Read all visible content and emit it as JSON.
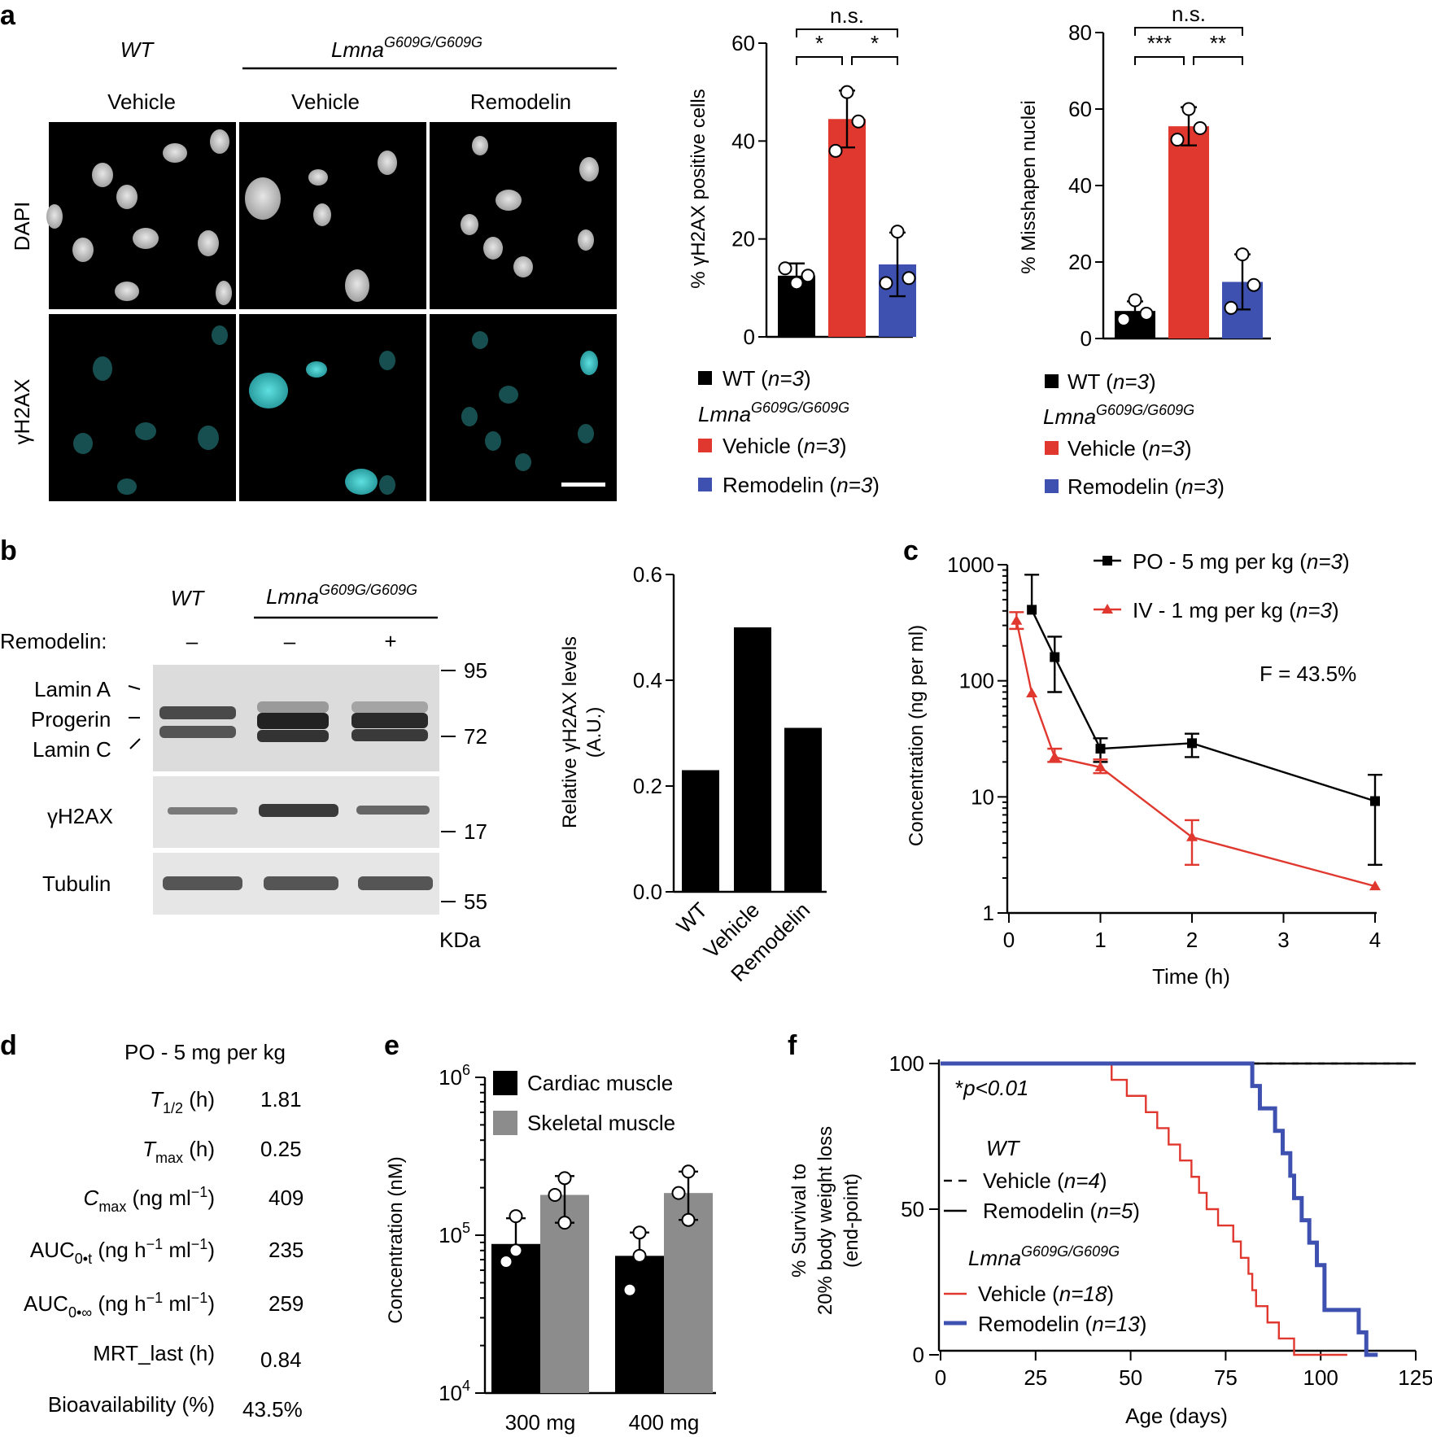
{
  "colors": {
    "black": "#000000",
    "red": "#e0382e",
    "blue": "#3f51b0",
    "grey": "#8c8c8c",
    "cyan": "#40c8c8",
    "nucleus": "#c8c8c8"
  },
  "panel_labels": {
    "a": "a",
    "b": "b",
    "c": "c",
    "d": "d",
    "e": "e",
    "f": "f"
  },
  "micro": {
    "col_wt": "WT",
    "col_lmna": "Lmna",
    "col_lmna_sup": "G609G/G609G",
    "col_vehicle1": "Vehicle",
    "col_vehicle2": "Vehicle",
    "col_remodelin": "Remodelin",
    "row_dapi": "DAPI",
    "row_gh2ax": "γH2AX"
  },
  "blot": {
    "col_wt": "WT",
    "col_lmna": "Lmna",
    "col_lmna_sup": "G609G/G609G",
    "remodelin_label": "Remodelin:",
    "signs": [
      "–",
      "–",
      "+"
    ],
    "band_lamina": "Lamin A",
    "band_progerin": "Progerin",
    "band_laminc": "Lamin C",
    "band_gh2ax": "γH2AX",
    "band_tubulin": "Tubulin",
    "markers": [
      "95",
      "72",
      "17",
      "55"
    ],
    "kda": "KDa"
  },
  "legend_a": {
    "wt": "WT",
    "lmna": "Lmna",
    "lmna_sup": "G609G/G609G",
    "vehicle": "Vehicle",
    "remodelin": "Remodelin",
    "n3": "n=3"
  },
  "legend_c": {
    "po": "PO - 5 mg per kg",
    "iv": "IV - 1 mg per kg",
    "n3": "n=3",
    "f_value": "F = 43.5%"
  },
  "table_d": {
    "header": "PO - 5 mg per kg",
    "rows": [
      {
        "label": "T",
        "sub": "1/2",
        "unit": " (h)",
        "value": "1.81"
      },
      {
        "label": "T",
        "sub": "max",
        "unit": " (h)",
        "value": "0.25"
      },
      {
        "label": "C",
        "sub": "max",
        "unit": " (ng ml",
        "sup": "−1",
        "unit2": ")",
        "value": "409"
      },
      {
        "label": "AUC",
        "sub": "0•t",
        "unit": " (ng h",
        "sup": "−1",
        "unit2": " ml",
        "sup2": "−1",
        "unit3": ")",
        "value": "235"
      },
      {
        "label": "AUC",
        "sub": "0•∞",
        "unit": " (ng h",
        "sup": "−1",
        "unit2": " ml",
        "sup2": "−1",
        "unit3": ")",
        "value": "259"
      },
      {
        "label": "MRT_last (h)",
        "value": "0.84"
      },
      {
        "label": "Bioavailability (%)",
        "value": "43.5%"
      }
    ]
  },
  "legend_e": {
    "cardiac": "Cardiac muscle",
    "skeletal": "Skeletal muscle"
  },
  "legend_f": {
    "pvalue": "p<0.01",
    "wt": "WT",
    "wt_vehicle": "Vehicle",
    "wt_vehicle_n": "n=4",
    "wt_remodelin": "Remodelin",
    "wt_remodelin_n": "n=5",
    "lmna": "Lmna",
    "lmna_sup": "G609G/G609G",
    "lm_vehicle": "Vehicle",
    "lm_vehicle_n": "n=18",
    "lm_remodelin": "Remodelin",
    "lm_remodelin_n": "n=13"
  },
  "chart_data": [
    {
      "id": "a1",
      "type": "bar",
      "title": "",
      "ylabel": "% γH2AX positive cells",
      "ylim": [
        0,
        60
      ],
      "yticks": [
        "0",
        "20",
        "40",
        "60"
      ],
      "categories": [
        "WT",
        "Vehicle",
        "Remodelin"
      ],
      "values": [
        12.5,
        44.5,
        14.8
      ],
      "errors": [
        2.5,
        5.8,
        6.5
      ],
      "points": [
        [
          11,
          14,
          12.5
        ],
        [
          50,
          38,
          44
        ],
        [
          21.5,
          11,
          12
        ]
      ],
      "significance": [
        {
          "pair": [
            0,
            1
          ],
          "label": "*"
        },
        {
          "pair": [
            1,
            2
          ],
          "label": "*"
        },
        {
          "pair": [
            0,
            2
          ],
          "label": "n.s."
        }
      ]
    },
    {
      "id": "a2",
      "type": "bar",
      "title": "",
      "ylabel": "% Misshapen nuclei",
      "ylim": [
        0,
        80
      ],
      "yticks": [
        "0",
        "20",
        "40",
        "60",
        "80"
      ],
      "categories": [
        "WT",
        "Vehicle",
        "Remodelin"
      ],
      "values": [
        7.2,
        55.5,
        14.8
      ],
      "errors": [
        2.5,
        5.0,
        7.2
      ],
      "points": [
        [
          10,
          5,
          6.5
        ],
        [
          60,
          52,
          55
        ],
        [
          22,
          8,
          14
        ]
      ],
      "significance": [
        {
          "pair": [
            0,
            1
          ],
          "label": "***"
        },
        {
          "pair": [
            1,
            2
          ],
          "label": "**"
        },
        {
          "pair": [
            0,
            2
          ],
          "label": "n.s."
        }
      ]
    },
    {
      "id": "b",
      "type": "bar",
      "title": "",
      "ylabel": "Relative γH2AX levels",
      "ylabel2": "(A.U.)",
      "ylim": [
        0,
        0.6
      ],
      "yticks": [
        "0.0",
        "0.2",
        "0.4",
        "0.6"
      ],
      "categories": [
        "WT",
        "Vehicle",
        "Remodelin"
      ],
      "values": [
        0.23,
        0.5,
        0.31
      ]
    },
    {
      "id": "c",
      "type": "line",
      "title": "",
      "xlabel": "Time (h)",
      "ylabel": "Concentration (ng per ml)",
      "xlim": [
        0,
        4
      ],
      "xticks": [
        "0",
        "1",
        "2",
        "3",
        "4"
      ],
      "ylim": [
        1,
        1000
      ],
      "yscale": "log",
      "yticks": [
        "1",
        "10",
        "100",
        "1000"
      ],
      "series": [
        {
          "name": "PO - 5 mg per kg (n=3)",
          "marker": "square",
          "x": [
            0.25,
            0.5,
            1,
            2,
            4
          ],
          "y": [
            409,
            160,
            26,
            29,
            9.2
          ],
          "err_lo": [
            null,
            80,
            20,
            22,
            2.6
          ],
          "err_hi": [
            820,
            240,
            32,
            35,
            15.5
          ]
        },
        {
          "name": "IV - 1 mg per kg (n=3)",
          "marker": "triangle",
          "x": [
            0.083,
            0.25,
            0.5,
            1,
            2,
            4
          ],
          "y": [
            330,
            78,
            22,
            18,
            4.5,
            1.7
          ],
          "err_lo": [
            280,
            null,
            20,
            16,
            2.6,
            null
          ],
          "err_hi": [
            390,
            null,
            26,
            21,
            6.3,
            null
          ]
        }
      ]
    },
    {
      "id": "e",
      "type": "bar",
      "title": "",
      "ylabel": "Concentration (nM)",
      "yscale": "log",
      "ylim": [
        10000,
        1000000
      ],
      "yticks": [
        {
          "base": "10",
          "exp": "4"
        },
        {
          "base": "10",
          "exp": "5"
        },
        {
          "base": "10",
          "exp": "6"
        }
      ],
      "categories": [
        "300 mg",
        "400 mg"
      ],
      "series": [
        {
          "name": "Cardiac muscle",
          "values": [
            88000,
            74000
          ],
          "err_hi": [
            128000,
            104000
          ],
          "points": [
            [
              132000,
              68000,
              80000
            ],
            [
              104000,
              45000,
              74000
            ]
          ]
        },
        {
          "name": "Skeletal muscle",
          "values": [
            180000,
            185000
          ],
          "err_hi": [
            237000,
            253000
          ],
          "err_lo": [
            120000,
            125000
          ],
          "points": [
            [
              230000,
              180000,
              120000
            ],
            [
              253000,
              185000,
              125000
            ]
          ]
        }
      ]
    },
    {
      "id": "f",
      "type": "line",
      "title": "",
      "xlabel": "Age (days)",
      "ylabel": "% Survival to",
      "ylabel2": "20% body weight loss",
      "ylabel3": "(end-point)",
      "xlim": [
        0,
        125
      ],
      "xticks": [
        "0",
        "25",
        "50",
        "75",
        "100",
        "125"
      ],
      "ylim": [
        0,
        100
      ],
      "yticks": [
        "0",
        "50",
        "100"
      ],
      "series": [
        {
          "name": "WT Vehicle (n=4)",
          "step": true,
          "x": [
            0,
            125
          ],
          "y": [
            100,
            100
          ]
        },
        {
          "name": "WT Remodelin (n=5)",
          "step": true,
          "x": [
            0,
            125
          ],
          "y": [
            100,
            100
          ]
        },
        {
          "name": "Lmna Vehicle (n=18)",
          "step": true,
          "x": [
            0,
            45,
            49,
            54,
            57,
            60,
            63,
            66,
            68,
            70,
            73,
            77,
            79,
            81,
            82,
            83,
            86,
            89,
            93,
            96,
            107
          ],
          "y": [
            100,
            94.4,
            88.9,
            83.3,
            77.8,
            72.2,
            66.7,
            61.1,
            55.6,
            50,
            44.4,
            38.9,
            33.3,
            27.8,
            22.2,
            16.7,
            11.1,
            5.6,
            0,
            0,
            0
          ]
        },
        {
          "name": "Lmna Remodelin (n=13)",
          "step": true,
          "x": [
            0,
            82,
            84,
            88,
            90,
            92,
            93,
            95,
            97,
            99,
            101,
            110,
            112,
            115
          ],
          "y": [
            100,
            92.3,
            84.6,
            76.9,
            69.2,
            61.5,
            53.8,
            46.2,
            38.5,
            30.8,
            15.4,
            7.7,
            0,
            0
          ]
        }
      ]
    }
  ]
}
